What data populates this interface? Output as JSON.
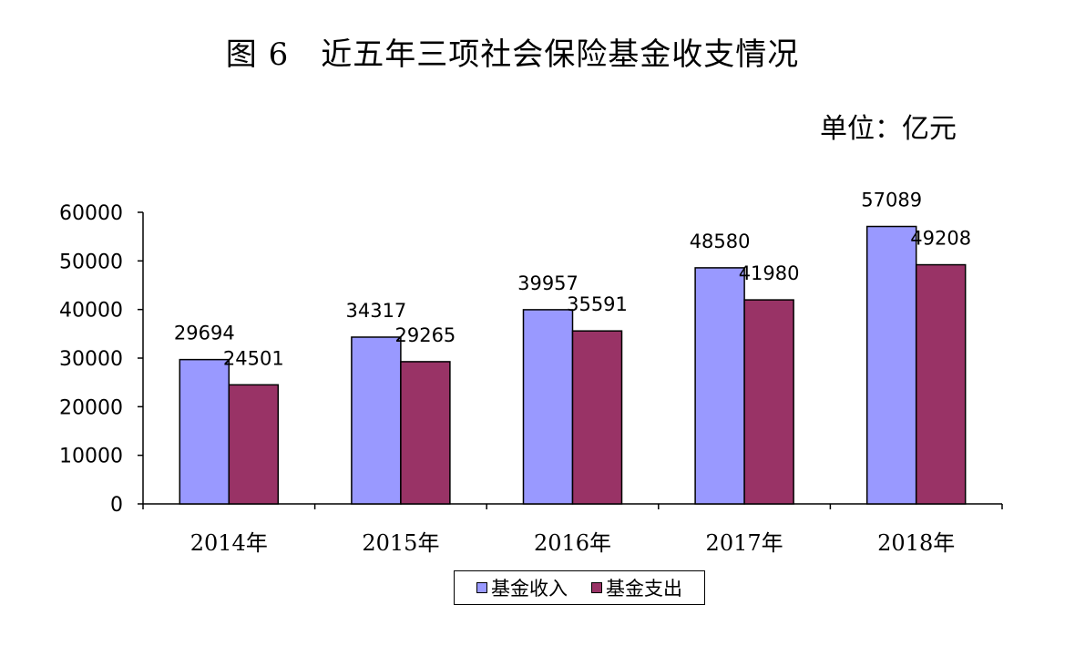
{
  "page": {
    "title": "图 6　近五年三项社会保险基金收支情况",
    "unit": "单位：亿元"
  },
  "colors": {
    "income": "#9999ff",
    "expense": "#993366"
  },
  "chart_data": {
    "type": "bar",
    "title": "图 6　近五年三项社会保险基金收支情况",
    "categories": [
      "2014年",
      "2015年",
      "2016年",
      "2017年",
      "2018年"
    ],
    "series": [
      {
        "name": "基金收入",
        "values": [
          29694,
          34317,
          39957,
          48580,
          57089
        ]
      },
      {
        "name": "基金支出",
        "values": [
          24501,
          29265,
          35591,
          41980,
          49208
        ]
      }
    ],
    "ylim": [
      0,
      60000
    ],
    "yticks": [
      "0",
      "10000",
      "20000",
      "30000",
      "40000",
      "50000",
      "60000"
    ],
    "xlabel": "",
    "ylabel": "",
    "grid": false,
    "legend_position": "bottom"
  }
}
